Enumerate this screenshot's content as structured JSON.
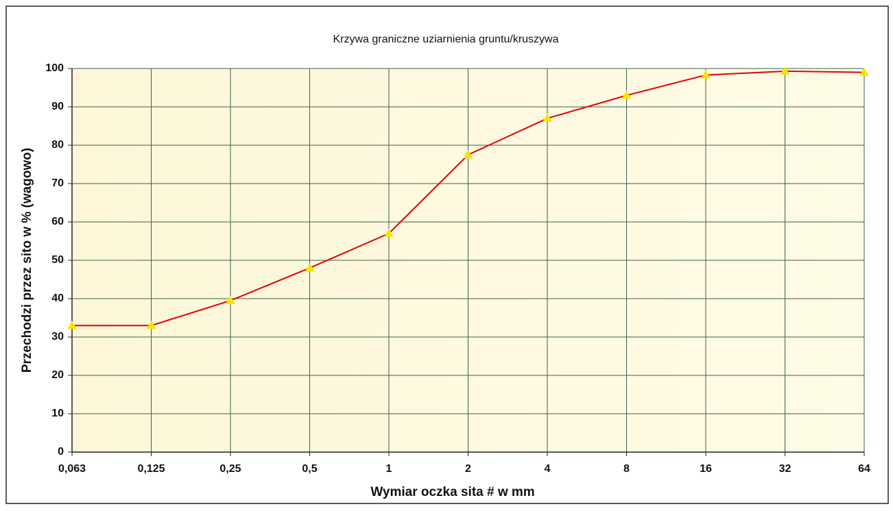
{
  "chart_data": {
    "type": "line",
    "title": "Krzywa graniczne uziarnienia gruntu/kruszywa",
    "x_label": "Wymiar oczka sita # w mm",
    "y_label": "Przechodzi przez sito w % (wagowo)",
    "categories": [
      "0,063",
      "0,125",
      "0,25",
      "0,5",
      "1",
      "2",
      "4",
      "8",
      "16",
      "32",
      "64"
    ],
    "values": [
      33,
      33,
      39.5,
      48,
      57,
      77.5,
      87,
      93,
      98.3,
      99.3,
      99
    ],
    "color": "#e60000",
    "marker_color": "#f2e600",
    "ylim": [
      0,
      100
    ],
    "yticks": [
      0,
      10,
      20,
      30,
      40,
      50,
      60,
      70,
      80,
      90,
      100
    ],
    "grid": true
  }
}
